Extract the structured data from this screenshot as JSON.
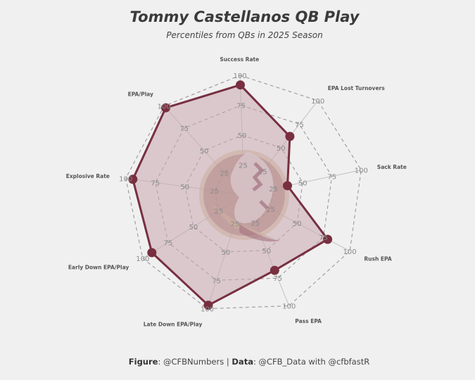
{
  "header": {
    "title": "Tommy Castellanos QB Play",
    "subtitle": "Percentiles from QBs in 2025 Season"
  },
  "footer": {
    "figure_label": "Figure",
    "figure_value": ": @CFBNumbers | ",
    "data_label": "Data",
    "data_value": ": @CFB_Data with @cfbfastR"
  },
  "colors": {
    "background": "#f0f0f0",
    "series": "#782f40",
    "fill": "#c9a7b1",
    "grid": "#9a9a9a",
    "logo_gold": "#ceb888"
  },
  "logo": {
    "name": "florida-state-seminoles-logo"
  },
  "chart_data": {
    "type": "radar",
    "title": "Tommy Castellanos QB Play",
    "subtitle": "Percentiles from QBs in 2025 Season",
    "axes": [
      "Success Rate",
      "EPA Lost Turnovers",
      "Sack Rate",
      "Rush EPA",
      "Pass EPA",
      "Late Down EPA/Play",
      "Early Down EPA/Play",
      "Explosive Rate",
      "EPA/Play"
    ],
    "rlim": [
      0,
      100
    ],
    "ticks": [
      25,
      50,
      75,
      100
    ],
    "grid": true,
    "series": [
      {
        "values": [
          92,
          62,
          37,
          79,
          68,
          97,
          91,
          94,
          98
        ]
      }
    ]
  }
}
